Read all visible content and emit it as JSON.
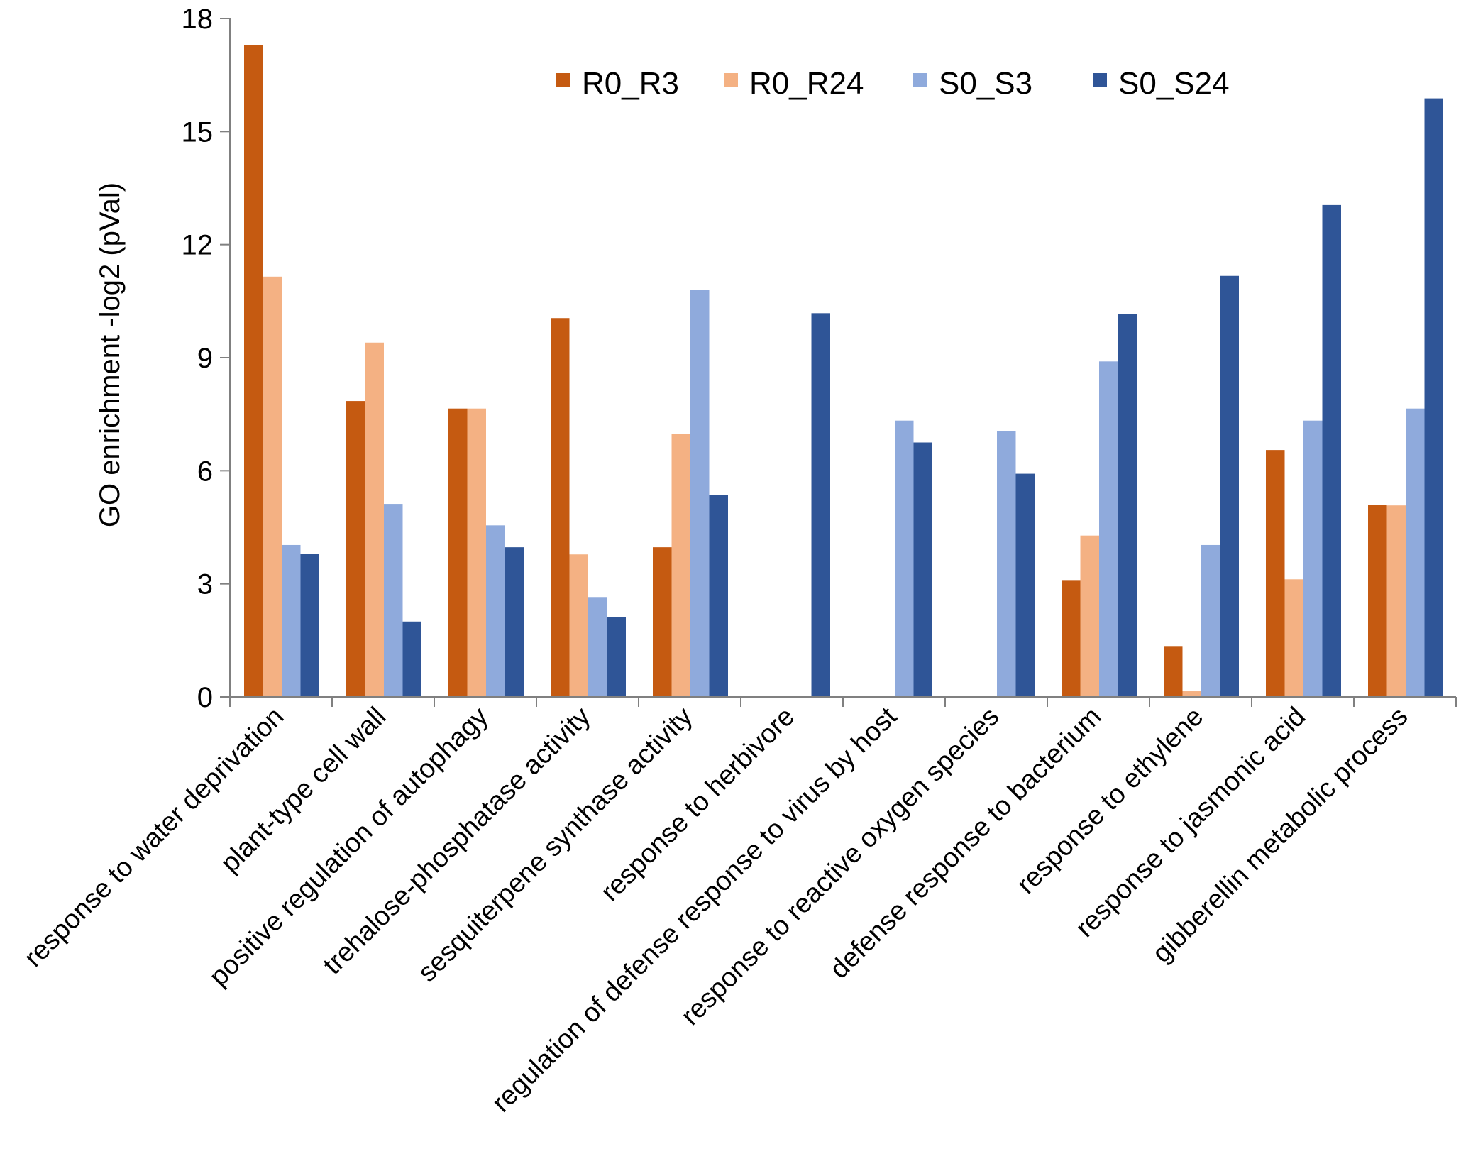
{
  "chart_data": {
    "type": "bar",
    "title": "",
    "xlabel": "",
    "ylabel": "GO enrichment -log2 (pVal)",
    "ylim": [
      0,
      18
    ],
    "yticks": [
      "0",
      "3",
      "6",
      "9",
      "12",
      "15",
      "18"
    ],
    "grid": false,
    "legend_position": "top-center",
    "categories": [
      "response to water deprivation",
      "plant-type cell wall",
      "positive regulation of autophagy",
      "trehalose-phosphatase activity",
      "sesquiterpene synthase activity",
      "response to herbivore",
      "regulation of defense response to virus by host",
      "response to reactive oxygen species",
      "defense response to bacterium",
      "response to ethylene",
      "response to jasmonic acid",
      "gibberellin metabolic process"
    ],
    "series": [
      {
        "name": "R0_R3",
        "color": "#c55a11",
        "values": [
          17.3,
          7.85,
          7.65,
          10.05,
          3.97,
          0,
          0,
          0,
          3.1,
          1.35,
          6.55,
          5.1
        ]
      },
      {
        "name": "R0_R24",
        "color": "#f4b183",
        "values": [
          11.15,
          9.4,
          7.65,
          3.78,
          6.98,
          0,
          0,
          0,
          4.28,
          0.15,
          3.12,
          5.08
        ]
      },
      {
        "name": "S0_S3",
        "color": "#8faadc",
        "values": [
          4.03,
          5.12,
          4.55,
          2.65,
          10.8,
          0,
          7.33,
          7.05,
          8.9,
          4.03,
          7.33,
          7.65
        ]
      },
      {
        "name": "S0_S24",
        "color": "#2f5597",
        "values": [
          3.8,
          2.0,
          3.97,
          2.12,
          5.35,
          10.18,
          6.75,
          5.92,
          10.15,
          11.17,
          13.05,
          15.88
        ]
      }
    ]
  }
}
